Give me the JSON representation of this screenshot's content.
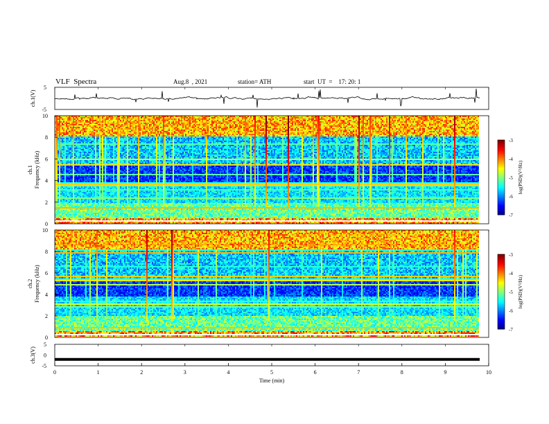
{
  "header": {
    "title": "VLF  Spectra",
    "date": "Aug.8  , 2021",
    "station": "station= ATH",
    "start": "start  UT  =    17: 20: 1"
  },
  "chart_data": [
    {
      "type": "line",
      "name": "ch1-waveform",
      "ylabel": "ch.1(V)",
      "ylim": [
        -5,
        5
      ],
      "yticks": [
        "5",
        "-5"
      ],
      "xlim": [
        0,
        10
      ],
      "color": "#000000"
    },
    {
      "type": "heatmap",
      "name": "ch1-spectrogram",
      "ylabel_line1": "ch.1",
      "ylabel_line2": "Frequency  (kHz)",
      "ylim": [
        0,
        10
      ],
      "yticks": [
        "0",
        "2",
        "4",
        "6",
        "8",
        "10"
      ],
      "xlim": [
        0,
        10
      ],
      "colorbar": {
        "label": "log(PSD)(V²/Hz)",
        "ticks": [
          "-3",
          "-4",
          "-5",
          "-6",
          "-7"
        ],
        "range": [
          -7,
          -3
        ]
      }
    },
    {
      "type": "heatmap",
      "name": "ch2-spectrogram",
      "ylabel_line1": "ch.2",
      "ylabel_line2": "Frequency  (kHz)",
      "ylim": [
        0,
        10
      ],
      "yticks": [
        "0",
        "2",
        "4",
        "6",
        "8",
        "10"
      ],
      "xlim": [
        0,
        10
      ],
      "colorbar": {
        "label": "log(PSD)(V²/Hz)",
        "ticks": [
          "-3",
          "-4",
          "-5",
          "-6",
          "-7"
        ],
        "range": [
          -7,
          -3
        ]
      }
    },
    {
      "type": "line",
      "name": "ch3-waveform",
      "ylabel": "ch.3(V)",
      "ylim": [
        -5,
        5
      ],
      "yticks": [
        "5",
        "0",
        "-5"
      ],
      "xlim": [
        0,
        10
      ],
      "xticks": [
        "0",
        "1",
        "2",
        "3",
        "4",
        "5",
        "6",
        "7",
        "8",
        "9",
        "10"
      ],
      "xlabel": "Time  (min)",
      "approx_level": -2,
      "color": "#000000"
    }
  ]
}
